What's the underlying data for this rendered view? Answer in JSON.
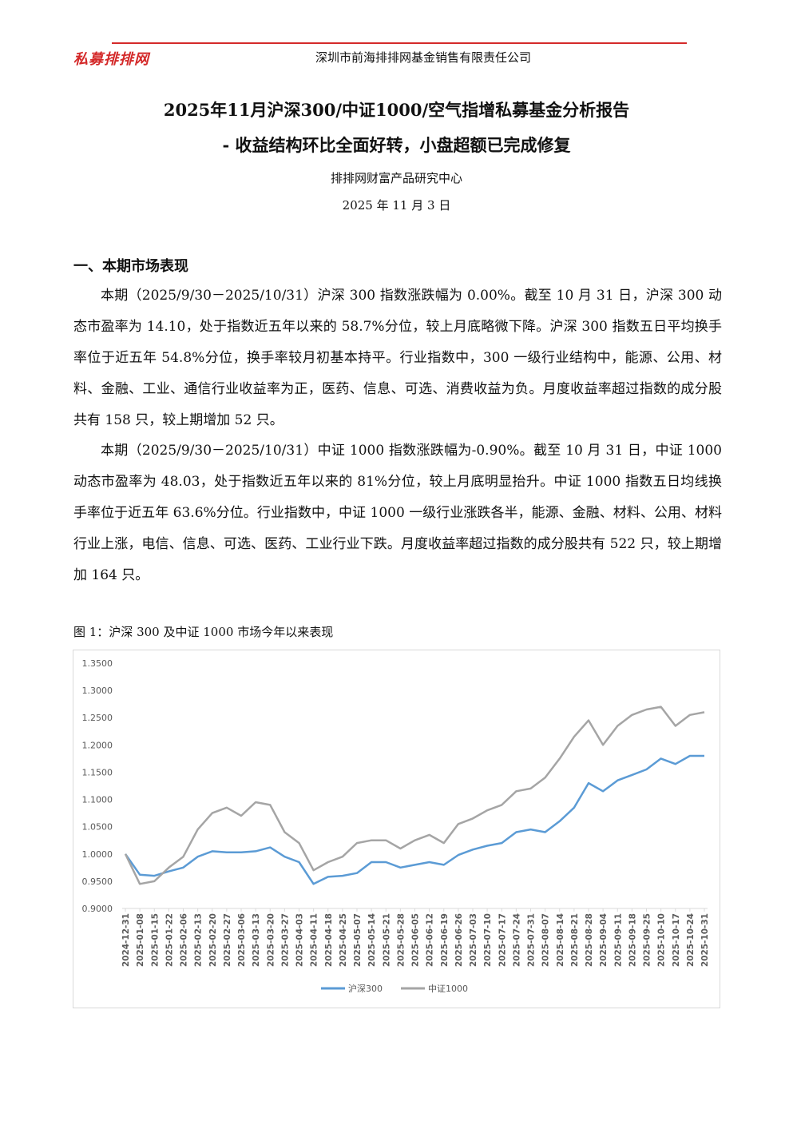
{
  "header": {
    "logo": "私募排排网",
    "company": "深圳市前海排排网基金销售有限责任公司"
  },
  "title": {
    "line1": "2025年11月沪深300/中证1000/空气指增私募基金分析报告",
    "line2": "-  收益结构环比全面好转，小盘超额已完成修复",
    "author": "排排网财富产品研究中心",
    "date": "2025 年 11 月 3 日"
  },
  "section": {
    "heading": "一、本期市场表现",
    "paragraphs": [
      "本期（2025/9/30－2025/10/31）沪深 300 指数涨跌幅为 0.00%。截至 10 月 31 日，沪深 300 动态市盈率为 14.10，处于指数近五年以来的 58.7%分位，较上月底略微下降。沪深 300 指数五日平均换手率位于近五年 54.8%分位，换手率较月初基本持平。行业指数中，300 一级行业结构中，能源、公用、材料、金融、工业、通信行业收益率为正，医药、信息、可选、消费收益为负。月度收益率超过指数的成分股共有 158 只，较上期增加 52 只。",
      "本期（2025/9/30－2025/10/31）中证 1000 指数涨跌幅为-0.90%。截至 10 月 31 日，中证 1000 动态市盈率为 48.03，处于指数近五年以来的 81%分位，较上月底明显抬升。中证 1000 指数五日均线换手率位于近五年 63.6%分位。行业指数中，中证 1000 一级行业涨跌各半，能源、金融、材料、公用、材料行业上涨，电信、信息、可选、医药、工业行业下跌。月度收益率超过指数的成分股共有 522 只，较上期增加 164 只。"
    ],
    "caption": "图 1：沪深 300 及中证 1000 市场今年以来表现"
  },
  "chart_data": {
    "type": "line",
    "categories": [
      "2024-12-31",
      "2025-01-08",
      "2025-01-15",
      "2025-01-22",
      "2025-02-06",
      "2025-02-13",
      "2025-02-20",
      "2025-02-27",
      "2025-03-06",
      "2025-03-13",
      "2025-03-20",
      "2025-03-27",
      "2025-04-03",
      "2025-04-11",
      "2025-04-18",
      "2025-04-25",
      "2025-05-07",
      "2025-05-14",
      "2025-05-21",
      "2025-05-28",
      "2025-06-05",
      "2025-06-12",
      "2025-06-19",
      "2025-06-26",
      "2025-07-03",
      "2025-07-10",
      "2025-07-17",
      "2025-07-24",
      "2025-07-31",
      "2025-08-07",
      "2025-08-14",
      "2025-08-21",
      "2025-08-28",
      "2025-09-04",
      "2025-09-11",
      "2025-09-18",
      "2025-09-25",
      "2025-10-10",
      "2025-10-17",
      "2025-10-24",
      "2025-10-31"
    ],
    "series": [
      {
        "name": "沪深300",
        "color": "#5b9bd5",
        "values": [
          1.0,
          0.962,
          0.96,
          0.968,
          0.975,
          0.995,
          1.005,
          1.003,
          1.003,
          1.005,
          1.012,
          0.995,
          0.985,
          0.945,
          0.958,
          0.96,
          0.965,
          0.985,
          0.985,
          0.975,
          0.98,
          0.985,
          0.98,
          0.998,
          1.008,
          1.015,
          1.02,
          1.04,
          1.045,
          1.04,
          1.06,
          1.085,
          1.13,
          1.115,
          1.135,
          1.145,
          1.155,
          1.175,
          1.165,
          1.18,
          1.18
        ]
      },
      {
        "name": "中证1000",
        "color": "#a5a5a5",
        "values": [
          1.0,
          0.945,
          0.95,
          0.975,
          0.995,
          1.045,
          1.075,
          1.085,
          1.07,
          1.095,
          1.09,
          1.04,
          1.02,
          0.97,
          0.985,
          0.995,
          1.02,
          1.025,
          1.025,
          1.01,
          1.025,
          1.035,
          1.02,
          1.055,
          1.065,
          1.08,
          1.09,
          1.115,
          1.12,
          1.14,
          1.175,
          1.215,
          1.245,
          1.2,
          1.235,
          1.255,
          1.265,
          1.27,
          1.235,
          1.255,
          1.26
        ]
      }
    ],
    "ylim": [
      0.9,
      1.35
    ],
    "yticks": [
      {
        "value": 0.9,
        "label": "0.9000"
      },
      {
        "value": 0.95,
        "label": "0.9500"
      },
      {
        "value": 1.0,
        "label": "1.0000"
      },
      {
        "value": 1.05,
        "label": "1.0500"
      },
      {
        "value": 1.1,
        "label": "1.1000"
      },
      {
        "value": 1.15,
        "label": "1.1500"
      },
      {
        "value": 1.2,
        "label": "1.2000"
      },
      {
        "value": 1.25,
        "label": "1.2500"
      },
      {
        "value": 1.3,
        "label": "1.3000"
      },
      {
        "value": 1.35,
        "label": "1.3500"
      }
    ],
    "grid": false,
    "legend": "bottom"
  }
}
